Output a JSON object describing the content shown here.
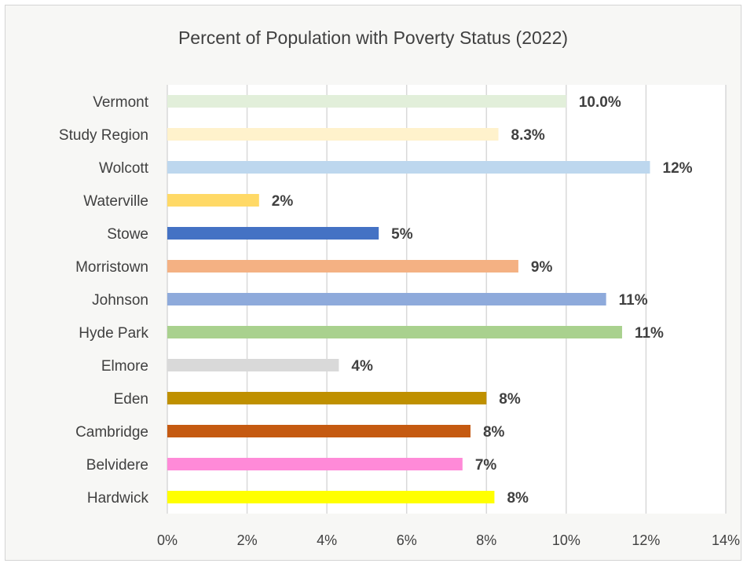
{
  "chart_data": {
    "type": "bar",
    "orientation": "horizontal",
    "title": "Percent of Population with Poverty Status (2022)",
    "xlabel": "",
    "ylabel": "",
    "xlim": [
      0,
      14
    ],
    "x_ticks": [
      "0%",
      "2%",
      "4%",
      "6%",
      "8%",
      "10%",
      "12%",
      "14%"
    ],
    "grid": "vertical",
    "legend": "none",
    "categories": [
      "Vermont",
      "Study Region",
      "Wolcott",
      "Waterville",
      "Stowe",
      "Morristown",
      "Johnson",
      "Hyde Park",
      "Elmore",
      "Eden",
      "Cambridge",
      "Belvidere",
      "Hardwick"
    ],
    "values": [
      10.0,
      8.3,
      12.1,
      2.3,
      5.3,
      8.8,
      11.0,
      11.4,
      4.3,
      8.0,
      7.6,
      7.4,
      8.2
    ],
    "data_labels": [
      "10.0%",
      "8.3%",
      "12%",
      "2%",
      "5%",
      "9%",
      "11%",
      "11%",
      "4%",
      "8%",
      "8%",
      "7%",
      "8%"
    ],
    "colors": [
      "#e2efda",
      "#fff2cc",
      "#bdd7ee",
      "#ffd966",
      "#4472c4",
      "#f4b183",
      "#8eaadb",
      "#a9d18e",
      "#d9d9d9",
      "#bf9000",
      "#c55a11",
      "#ff8ad8",
      "#ffff00"
    ]
  }
}
